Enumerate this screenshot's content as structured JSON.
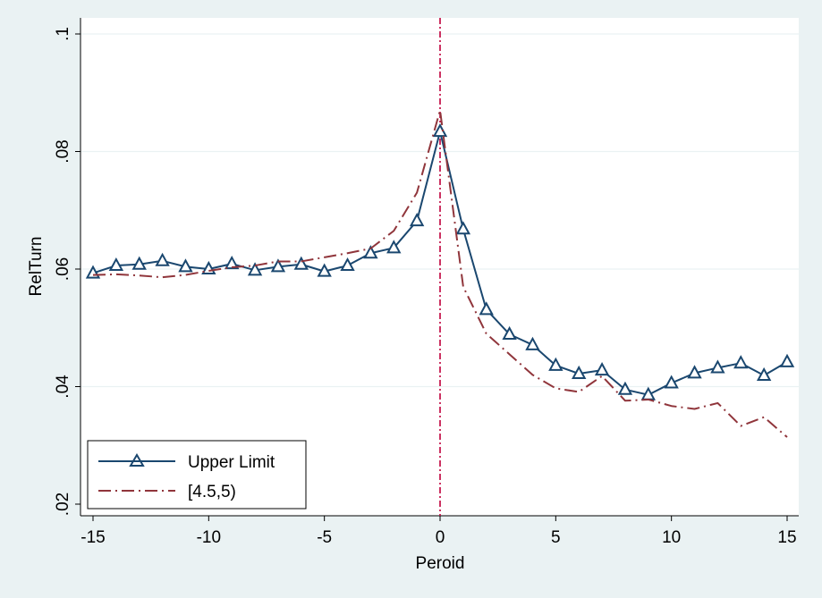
{
  "chart_data": {
    "type": "line",
    "xlabel": "Peroid",
    "ylabel": "RelTurn",
    "xlim": [
      -15,
      15
    ],
    "ylim": [
      0.02,
      0.1
    ],
    "xticks": [
      -15,
      -10,
      -5,
      0,
      5,
      10,
      15
    ],
    "xtick_labels": [
      "-15",
      "-10",
      "-5",
      "0",
      "5",
      "10",
      "15"
    ],
    "yticks": [
      0.02,
      0.04,
      0.06,
      0.08,
      0.1
    ],
    "ytick_labels": [
      ".02",
      ".04",
      ".06",
      ".08",
      ".1"
    ],
    "grid": "horizontal",
    "vline": {
      "x": 0,
      "color": "#c0003c",
      "style": "dash-dot"
    },
    "legend_position": "bottom-left",
    "x": [
      -15,
      -14,
      -13,
      -12,
      -11,
      -10,
      -9,
      -8,
      -7,
      -6,
      -5,
      -4,
      -3,
      -2,
      -1,
      0,
      1,
      2,
      3,
      4,
      5,
      6,
      7,
      8,
      9,
      10,
      11,
      12,
      13,
      14,
      15
    ],
    "series": [
      {
        "name": "Upper Limit",
        "color": "#1a476f",
        "style": "solid",
        "marker": "triangle",
        "values": [
          0.0593,
          0.0606,
          0.0608,
          0.0614,
          0.0604,
          0.06,
          0.0609,
          0.0598,
          0.0604,
          0.0608,
          0.0596,
          0.0606,
          0.0627,
          0.0636,
          0.0682,
          0.0834,
          0.0668,
          0.0531,
          0.0489,
          0.0471,
          0.0436,
          0.0422,
          0.0428,
          0.0395,
          0.0386,
          0.0406,
          0.0423,
          0.0432,
          0.044,
          0.0419,
          0.0442
        ]
      },
      {
        "name": "[4.5,5)",
        "color": "#90353b",
        "style": "dash-dot",
        "values": [
          0.059,
          0.0591,
          0.0589,
          0.0586,
          0.059,
          0.0597,
          0.0603,
          0.0606,
          0.0613,
          0.0613,
          0.062,
          0.0627,
          0.0635,
          0.0665,
          0.073,
          0.087,
          0.057,
          0.049,
          0.0455,
          0.042,
          0.0397,
          0.0391,
          0.0418,
          0.0376,
          0.0378,
          0.0367,
          0.0362,
          0.0372,
          0.0333,
          0.0348,
          0.0314
        ]
      }
    ]
  }
}
